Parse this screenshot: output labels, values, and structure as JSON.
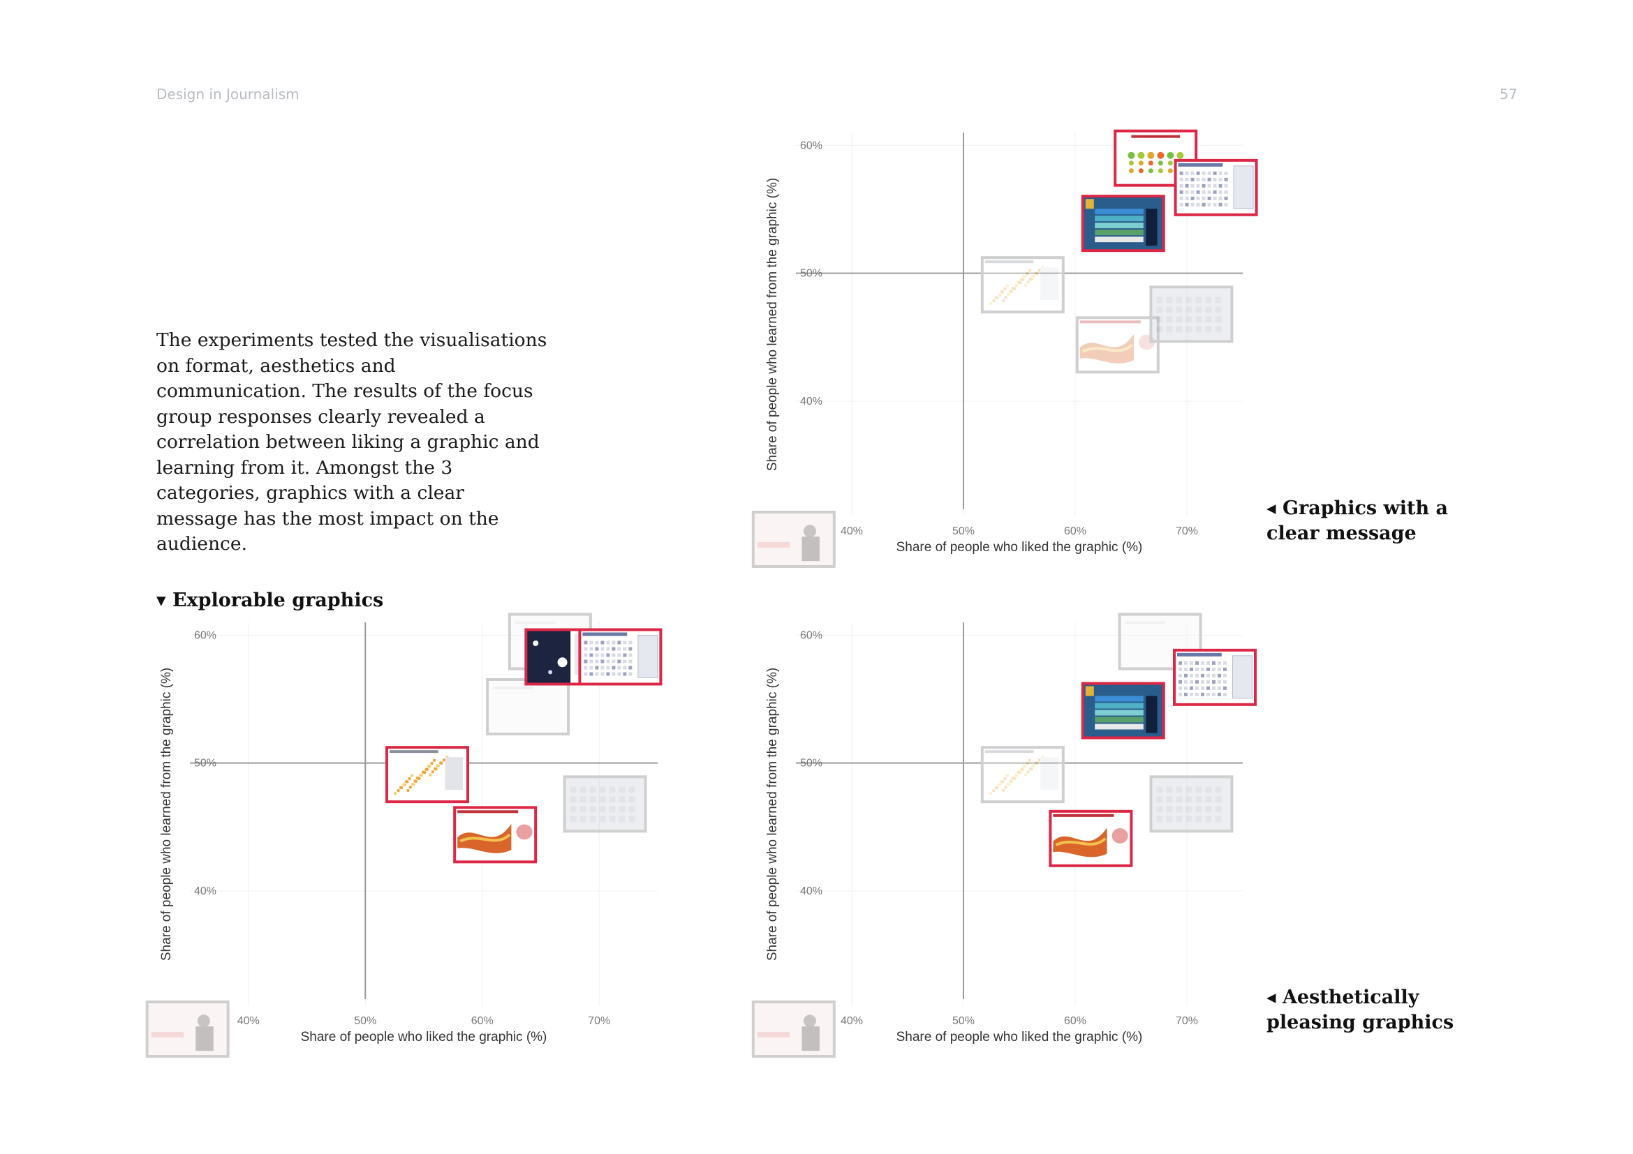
{
  "page": {
    "running_title": "Design in Journalism",
    "page_number": "57"
  },
  "body_text": "The experiments tested the visualisations on format, aesthetics and communication. The results of the focus group responses clearly revealed a correlation between liking a graphic and learning from it. Amongst the 3 categories, graphics with a clear message has the most impact on the audience.",
  "labels": {
    "explorable": "▾ Explorable graphics",
    "clear_message": "◂ Graphics with a clear message",
    "aesthetic": "◂ Aesthetically pleasing graphics"
  },
  "colors": {
    "highlight": "#dc2846",
    "muted": "#cfcfcf",
    "axis": "#9a9a9a",
    "grid": "#f0f0f0"
  },
  "chart_data": [
    {
      "id": "clear-message",
      "type": "scatter",
      "xlabel": "Share of people who liked the graphic (%)",
      "ylabel": "Share of people who learned from the graphic (%)",
      "x_ticks": [
        "40%",
        "50%",
        "60%",
        "70%"
      ],
      "y_ticks": [
        "60%",
        "50%",
        "40%"
      ],
      "xlim": [
        35,
        75
      ],
      "ylim": [
        31,
        61
      ],
      "reference_lines": {
        "x": 50,
        "y": 50
      },
      "points": [
        {
          "x": 34.8,
          "y": 29.2,
          "highlighted": false,
          "thumb": "portrait"
        },
        {
          "x": 55.3,
          "y": 49.1,
          "highlighted": false,
          "thumb": "scatter"
        },
        {
          "x": 63.8,
          "y": 44.4,
          "highlighted": false,
          "thumb": "stream"
        },
        {
          "x": 70.4,
          "y": 46.8,
          "highlighted": false,
          "thumb": "grid"
        },
        {
          "x": 67.2,
          "y": 59.0,
          "highlighted": true,
          "thumb": "dots"
        },
        {
          "x": 72.6,
          "y": 56.7,
          "highlighted": true,
          "thumb": "table"
        },
        {
          "x": 64.3,
          "y": 53.9,
          "highlighted": true,
          "thumb": "diagram"
        }
      ]
    },
    {
      "id": "explorable",
      "type": "scatter",
      "xlabel": "Share of people who liked the graphic (%)",
      "ylabel": "Share of people who learned from the graphic (%)",
      "x_ticks": [
        "40%",
        "50%",
        "60%",
        "70%"
      ],
      "y_ticks": [
        "60%",
        "50%",
        "40%"
      ],
      "xlim": [
        35,
        75
      ],
      "ylim": [
        31,
        61
      ],
      "reference_lines": {
        "x": 50,
        "y": 50
      },
      "points": [
        {
          "x": 34.8,
          "y": 29.2,
          "highlighted": false,
          "thumb": "portrait"
        },
        {
          "x": 65.8,
          "y": 59.5,
          "highlighted": false,
          "thumb": "blank"
        },
        {
          "x": 63.9,
          "y": 54.4,
          "highlighted": false,
          "thumb": "blank"
        },
        {
          "x": 70.5,
          "y": 46.8,
          "highlighted": false,
          "thumb": "grid"
        },
        {
          "x": 55.3,
          "y": 49.1,
          "highlighted": true,
          "thumb": "scatter"
        },
        {
          "x": 61.1,
          "y": 44.4,
          "highlighted": true,
          "thumb": "stream"
        },
        {
          "x": 67.2,
          "y": 58.3,
          "highlighted": true,
          "thumb": "night"
        },
        {
          "x": 71.8,
          "y": 58.3,
          "highlighted": true,
          "thumb": "table"
        }
      ]
    },
    {
      "id": "aesthetic",
      "type": "scatter",
      "xlabel": "Share of people who liked the graphic (%)",
      "ylabel": "Share of people who learned from the graphic (%)",
      "x_ticks": [
        "40%",
        "50%",
        "60%",
        "70%"
      ],
      "y_ticks": [
        "60%",
        "50%",
        "40%"
      ],
      "xlim": [
        35,
        75
      ],
      "ylim": [
        31,
        61
      ],
      "reference_lines": {
        "x": 50,
        "y": 50
      },
      "points": [
        {
          "x": 34.8,
          "y": 29.2,
          "highlighted": false,
          "thumb": "portrait"
        },
        {
          "x": 55.3,
          "y": 49.1,
          "highlighted": false,
          "thumb": "scatter"
        },
        {
          "x": 67.6,
          "y": 59.5,
          "highlighted": false,
          "thumb": "blank"
        },
        {
          "x": 70.4,
          "y": 46.8,
          "highlighted": false,
          "thumb": "grid"
        },
        {
          "x": 64.3,
          "y": 54.1,
          "highlighted": true,
          "thumb": "diagram"
        },
        {
          "x": 61.4,
          "y": 44.1,
          "highlighted": true,
          "thumb": "stream"
        },
        {
          "x": 72.5,
          "y": 56.7,
          "highlighted": true,
          "thumb": "table"
        }
      ]
    }
  ]
}
